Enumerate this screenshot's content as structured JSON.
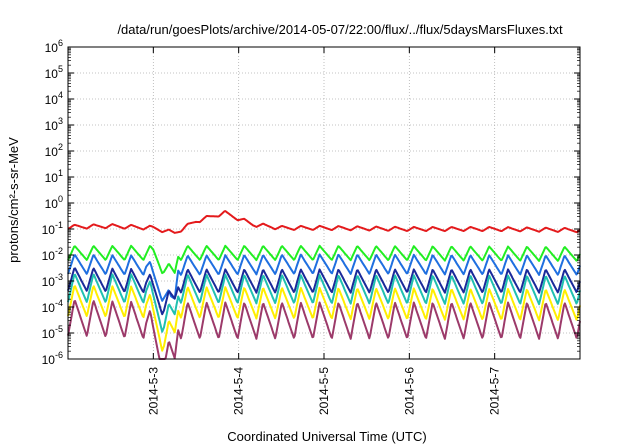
{
  "chart_data": {
    "type": "line",
    "title": "/data/run/goesPlots/archive/2014-05-07/22:00/flux/../flux/5daysMarsFluxes.txt",
    "xlabel": "Coordinated Universal Time (UTC)",
    "ylabel": "protons/cm²-s-sr-MeV",
    "y_scale": "log",
    "ylim": [
      1e-06,
      1000000.0
    ],
    "y_ticks": [
      {
        "base": "10",
        "exp": "-6"
      },
      {
        "base": "10",
        "exp": "-5"
      },
      {
        "base": "10",
        "exp": "-4"
      },
      {
        "base": "10",
        "exp": "-3"
      },
      {
        "base": "10",
        "exp": "-2"
      },
      {
        "base": "10",
        "exp": "-1"
      },
      {
        "base": "10",
        "exp": "0"
      },
      {
        "base": "10",
        "exp": "1"
      },
      {
        "base": "10",
        "exp": "2"
      },
      {
        "base": "10",
        "exp": "3"
      },
      {
        "base": "10",
        "exp": "4"
      },
      {
        "base": "10",
        "exp": "5"
      },
      {
        "base": "10",
        "exp": "6"
      }
    ],
    "xlim": [
      "2014-05-02T00:00",
      "2014-05-08T00:00"
    ],
    "x_ticks": [
      "2014-5-3",
      "2014-5-4",
      "2014-5-5",
      "2014-5-6",
      "2014-5-7"
    ],
    "grid": true,
    "legend": "none",
    "series": [
      {
        "color": "#e41a1c",
        "base": 0.11,
        "sawtooth_amp": 0.16,
        "period_hours": 5.3,
        "points": [
          [
            "2014-05-02T00:00",
            0.12
          ],
          [
            "2014-05-02T12:00",
            0.13
          ],
          [
            "2014-05-03T00:00",
            0.11
          ],
          [
            "2014-05-03T06:00",
            0.07
          ],
          [
            "2014-05-03T12:00",
            0.2
          ],
          [
            "2014-05-03T20:00",
            0.42
          ],
          [
            "2014-05-04T04:00",
            0.15
          ],
          [
            "2014-05-04T12:00",
            0.11
          ],
          [
            "2014-05-05T00:00",
            0.11
          ],
          [
            "2014-05-06T00:00",
            0.1
          ],
          [
            "2014-05-07T00:00",
            0.1
          ],
          [
            "2014-05-08T00:00",
            0.09
          ]
        ]
      },
      {
        "color": "#22ee22",
        "base": 0.012,
        "sawtooth_amp": 0.55,
        "period_hours": 5.3,
        "points": [
          [
            "2014-05-02T00:00",
            0.012
          ],
          [
            "2014-05-03T00:00",
            0.012
          ],
          [
            "2014-05-03T03:00",
            0.003
          ],
          [
            "2014-05-03T06:00",
            0.002
          ],
          [
            "2014-05-03T07:00",
            0.012
          ],
          [
            "2014-05-05T00:00",
            0.012
          ],
          [
            "2014-05-08T00:00",
            0.011
          ]
        ]
      },
      {
        "color": "#1f6fe0",
        "base": 0.0045,
        "sawtooth_amp": 0.75,
        "period_hours": 5.3,
        "points": [
          [
            "2014-05-02T00:00",
            0.0045
          ],
          [
            "2014-05-02T22:00",
            0.004
          ],
          [
            "2014-05-03T02:00",
            0.0005
          ],
          [
            "2014-05-03T05:00",
            0.00015
          ],
          [
            "2014-05-03T06:00",
            0.0002
          ],
          [
            "2014-05-03T07:00",
            0.004
          ],
          [
            "2014-05-05T00:00",
            0.0045
          ],
          [
            "2014-05-08T00:00",
            0.004
          ]
        ]
      },
      {
        "color": "#1a2a9a",
        "base": 0.0012,
        "sawtooth_amp": 0.9,
        "period_hours": 5.3,
        "points": [
          [
            "2014-05-02T00:00",
            0.0012
          ],
          [
            "2014-05-02T22:00",
            0.001
          ],
          [
            "2014-05-03T03:00",
            0.00012
          ],
          [
            "2014-05-03T06:00",
            0.0002
          ],
          [
            "2014-05-03T07:00",
            0.001
          ],
          [
            "2014-05-08T00:00",
            0.001
          ]
        ]
      },
      {
        "color": "#20c0b0",
        "base": 0.00055,
        "sawtooth_amp": 1.1,
        "period_hours": 5.3,
        "points": [
          [
            "2014-05-02T00:00",
            0.00055
          ],
          [
            "2014-05-02T22:00",
            0.0005
          ],
          [
            "2014-05-03T03:00",
            3e-05
          ],
          [
            "2014-05-03T06:00",
            5e-05
          ],
          [
            "2014-05-03T07:00",
            0.0005
          ],
          [
            "2014-05-08T00:00",
            0.00045
          ]
        ]
      },
      {
        "color": "#ffee00",
        "base": 0.00018,
        "sawtooth_amp": 1.2,
        "period_hours": 5.3,
        "points": [
          [
            "2014-05-02T00:00",
            0.00018
          ],
          [
            "2014-05-02T22:00",
            0.00015
          ],
          [
            "2014-05-03T03:00",
            6e-06
          ],
          [
            "2014-05-03T06:00",
            1e-05
          ],
          [
            "2014-05-03T07:00",
            0.00015
          ],
          [
            "2014-05-08T00:00",
            0.00012
          ]
        ]
      },
      {
        "color": "#9c3a6a",
        "base": 4e-05,
        "sawtooth_amp": 1.4,
        "period_hours": 5.3,
        "points": [
          [
            "2014-05-02T00:00",
            4e-05
          ],
          [
            "2014-05-02T22:00",
            3e-05
          ],
          [
            "2014-05-03T03:00",
            1e-06
          ],
          [
            "2014-05-03T06:00",
            1e-06
          ],
          [
            "2014-05-03T07:00",
            3e-05
          ],
          [
            "2014-05-08T00:00",
            3e-05
          ]
        ]
      }
    ]
  }
}
